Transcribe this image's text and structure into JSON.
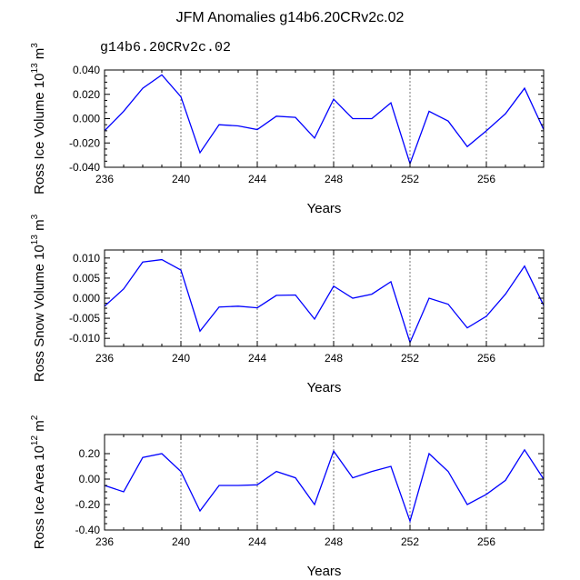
{
  "title": "JFM Anomalies g14b6.20CRv2c.02",
  "legend_label": "g14b6.20CRv2c.02",
  "colors": {
    "line": "#0000ff",
    "legend": "#5a5ae6",
    "axis": "#000000",
    "grid": "#555555"
  },
  "chart_data": [
    {
      "type": "line",
      "name": "ross-ice-volume",
      "ylabel": "Ross Ice Volume",
      "ylabel_units": "10^13 m^3",
      "xlabel": "Years",
      "x": [
        236,
        237,
        238,
        239,
        240,
        241,
        242,
        243,
        244,
        245,
        246,
        247,
        248,
        249,
        250,
        251,
        252,
        253,
        254,
        255,
        256,
        257,
        258,
        259
      ],
      "values": [
        -0.01,
        0.006,
        0.025,
        0.036,
        0.018,
        -0.028,
        -0.005,
        -0.006,
        -0.009,
        0.002,
        0.001,
        -0.016,
        0.016,
        0.0,
        0.0,
        0.013,
        -0.037,
        0.006,
        -0.002,
        -0.023,
        -0.01,
        0.004,
        0.025,
        -0.009
      ],
      "ylim": [
        -0.04,
        0.04
      ],
      "yticks": [
        -0.04,
        -0.02,
        0.0,
        0.02,
        0.04
      ],
      "ytick_labels": [
        "-0.040",
        "-0.020",
        "0.000",
        "0.020",
        "0.040"
      ],
      "xlim": [
        236,
        259
      ],
      "xticks": [
        236,
        240,
        244,
        248,
        252,
        256
      ],
      "xtick_labels": [
        "236",
        "240",
        "244",
        "248",
        "252",
        "256"
      ],
      "vgrid": [
        240,
        244,
        248,
        252,
        256
      ]
    },
    {
      "type": "line",
      "name": "ross-snow-volume",
      "ylabel": "Ross Snow Volume",
      "ylabel_units": "10^13 m^3",
      "xlabel": "Years",
      "x": [
        236,
        237,
        238,
        239,
        240,
        241,
        242,
        243,
        244,
        245,
        246,
        247,
        248,
        249,
        250,
        251,
        252,
        253,
        254,
        255,
        256,
        257,
        258,
        259
      ],
      "values": [
        -0.002,
        0.0023,
        0.009,
        0.0096,
        0.007,
        -0.0082,
        -0.0022,
        -0.002,
        -0.0024,
        0.0007,
        0.0008,
        -0.0052,
        0.003,
        0.0,
        0.001,
        0.0041,
        -0.011,
        0.0,
        -0.0015,
        -0.0074,
        -0.0045,
        0.001,
        0.008,
        -0.0018
      ],
      "ylim": [
        -0.012,
        0.012
      ],
      "yticks": [
        -0.01,
        -0.005,
        0.0,
        0.005,
        0.01
      ],
      "ytick_labels": [
        "-0.010",
        "-0.005",
        "0.000",
        "0.005",
        "0.010"
      ],
      "xlim": [
        236,
        259
      ],
      "xticks": [
        236,
        240,
        244,
        248,
        252,
        256
      ],
      "xtick_labels": [
        "236",
        "240",
        "244",
        "248",
        "252",
        "256"
      ],
      "vgrid": [
        240,
        244,
        248,
        252,
        256
      ]
    },
    {
      "type": "line",
      "name": "ross-ice-area",
      "ylabel": "Ross Ice Area",
      "ylabel_units": "10^12 m^2",
      "xlabel": "Years",
      "x": [
        236,
        237,
        238,
        239,
        240,
        241,
        242,
        243,
        244,
        245,
        246,
        247,
        248,
        249,
        250,
        251,
        252,
        253,
        254,
        255,
        256,
        257,
        258,
        259
      ],
      "values": [
        -0.05,
        -0.1,
        0.17,
        0.2,
        0.06,
        -0.25,
        -0.05,
        -0.05,
        -0.045,
        0.06,
        0.01,
        -0.2,
        0.22,
        0.01,
        0.06,
        0.1,
        -0.33,
        0.2,
        0.06,
        -0.2,
        -0.12,
        -0.01,
        0.23,
        0.0
      ],
      "ylim": [
        -0.4,
        0.35
      ],
      "yticks": [
        -0.4,
        -0.2,
        0.0,
        0.2
      ],
      "ytick_labels": [
        "-0.40",
        "-0.20",
        "0.00",
        "0.20"
      ],
      "xlim": [
        236,
        259
      ],
      "xticks": [
        236,
        240,
        244,
        248,
        252,
        256
      ],
      "xtick_labels": [
        "236",
        "240",
        "244",
        "248",
        "252",
        "256"
      ],
      "vgrid": [
        240,
        244,
        248,
        252,
        256
      ]
    }
  ]
}
